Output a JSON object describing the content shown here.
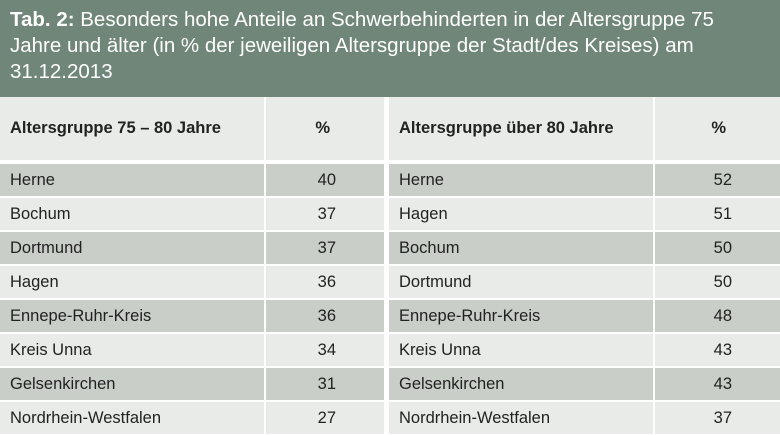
{
  "caption": {
    "label": "Tab. 2:",
    "text": "Besonders hohe Anteile an Schwerbehinderten in der Altersgruppe 75 Jahre und älter (in % der jeweiligen Altersgruppe der Stadt/des Kreises) am 31.12.2013"
  },
  "left_table": {
    "header_name": "Altersgruppe 75 – 80 Jahre",
    "header_value": "%",
    "rows": [
      {
        "name": "Herne",
        "value": "40"
      },
      {
        "name": "Bochum",
        "value": "37"
      },
      {
        "name": "Dortmund",
        "value": "37"
      },
      {
        "name": "Hagen",
        "value": "36"
      },
      {
        "name": "Ennepe-Ruhr-Kreis",
        "value": "36"
      },
      {
        "name": "Kreis Unna",
        "value": "34"
      },
      {
        "name": "Gelsenkirchen",
        "value": "31"
      },
      {
        "name": "Nordrhein-Westfalen",
        "value": "27"
      }
    ]
  },
  "right_table": {
    "header_name": "Altersgruppe über 80 Jahre",
    "header_value": "%",
    "rows": [
      {
        "name": "Herne",
        "value": "52"
      },
      {
        "name": "Hagen",
        "value": "51"
      },
      {
        "name": "Bochum",
        "value": "50"
      },
      {
        "name": "Dortmund",
        "value": "50"
      },
      {
        "name": "Ennepe-Ruhr-Kreis",
        "value": "48"
      },
      {
        "name": "Kreis Unna",
        "value": "43"
      },
      {
        "name": "Gelsenkirchen",
        "value": "43"
      },
      {
        "name": "Nordrhein-Westfalen",
        "value": "37"
      }
    ]
  },
  "colors": {
    "header_band": "#6f8679",
    "row_dark": "#c9cec8",
    "row_light": "#e9ebe8"
  }
}
